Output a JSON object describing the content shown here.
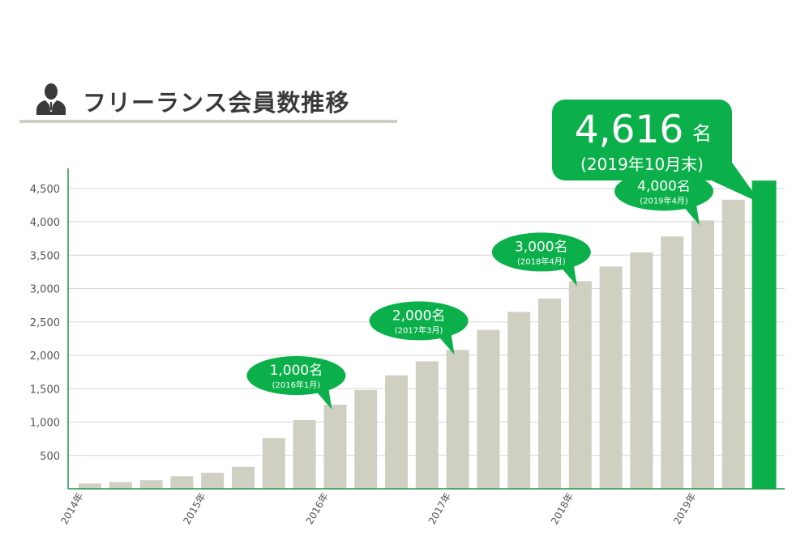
{
  "header": {
    "title": "フリーランス会員数推移",
    "icon": "person-icon"
  },
  "colors": {
    "bar": "#cfcfc2",
    "highlight": "#0bb04a",
    "axis": "#1e9a4b",
    "grid": "#d6d6d6",
    "rule": "#cfcfc2"
  },
  "chart_data": {
    "type": "bar",
    "title": "",
    "xlabel": "",
    "ylabel": "",
    "ylim": [
      0,
      4800
    ],
    "yticks": [
      500,
      1000,
      1500,
      2000,
      2500,
      3000,
      3500,
      4000,
      4500
    ],
    "ytick_labels": [
      "500",
      "1,000",
      "1,500",
      "2,000",
      "2,500",
      "3,000",
      "3,500",
      "4,000",
      "4,500"
    ],
    "grid": true,
    "year_labels": [
      {
        "label": "2014年",
        "index": 0
      },
      {
        "label": "2015年",
        "index": 4
      },
      {
        "label": "2016年",
        "index": 8
      },
      {
        "label": "2017年",
        "index": 12
      },
      {
        "label": "2018年",
        "index": 16
      },
      {
        "label": "2019年",
        "index": 20
      }
    ],
    "values": [
      80,
      100,
      130,
      190,
      240,
      330,
      760,
      1030,
      1260,
      1480,
      1700,
      1910,
      2080,
      2380,
      2650,
      2850,
      3110,
      3330,
      3540,
      3780,
      4020,
      4330,
      4616
    ],
    "highlight_index": 22,
    "callouts": [
      {
        "main": "1,000名",
        "sub": "(2016年1月)",
        "target": 8
      },
      {
        "main": "2,000名",
        "sub": "(2017年3月)",
        "target": 12
      },
      {
        "main": "3,000名",
        "sub": "(2018年4月)",
        "target": 16
      },
      {
        "main": "4,000名",
        "sub": "(2019年4月)",
        "target": 20
      }
    ],
    "main_callout": {
      "number": "4,616",
      "unit": "名",
      "sub": "(2019年10月末)",
      "target": 22
    }
  }
}
